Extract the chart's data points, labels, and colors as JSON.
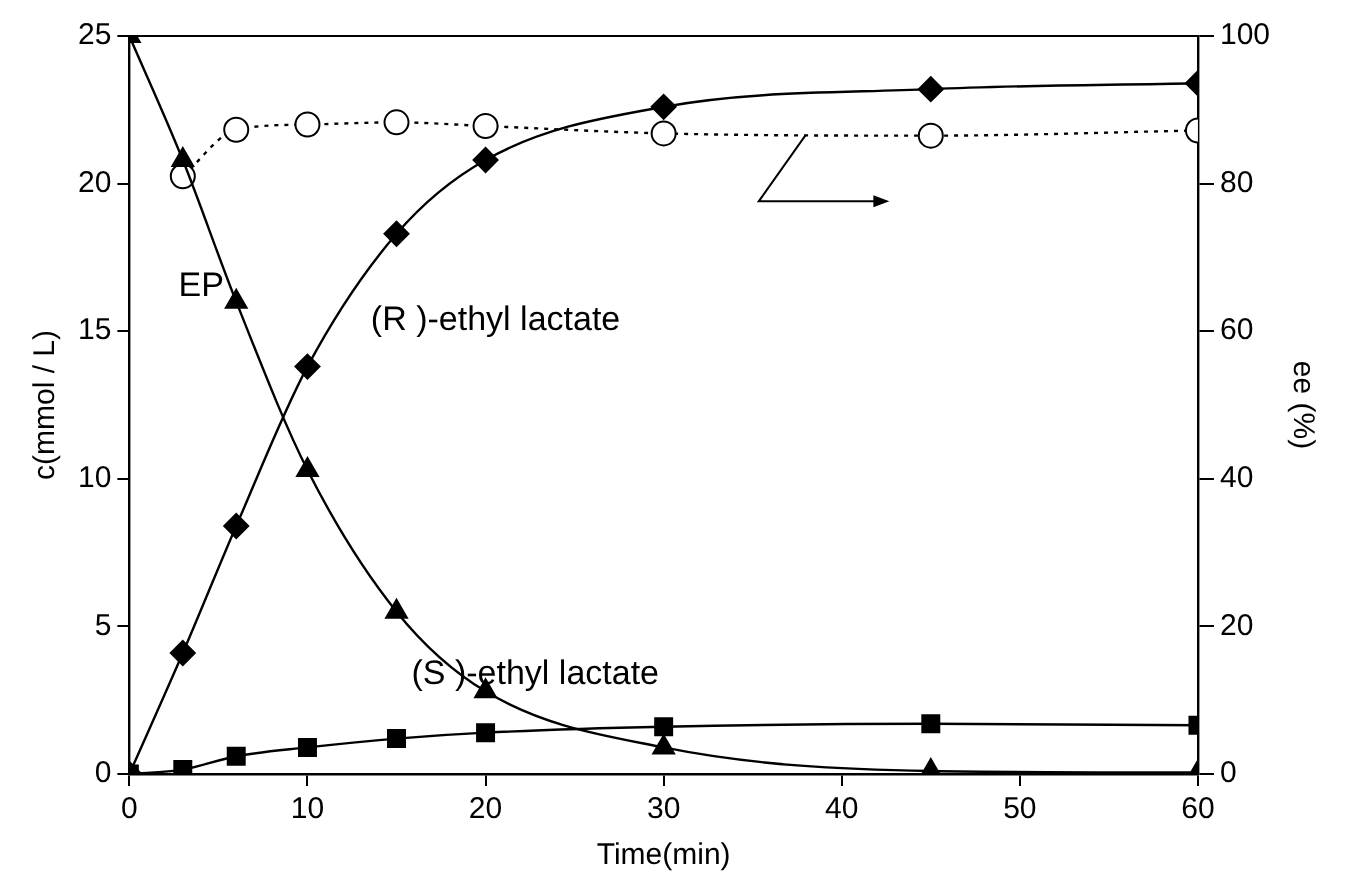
{
  "chart_data": {
    "type": "line",
    "xlabel": "Time(min)",
    "ylabel": "c(mmol / L)",
    "y2label": "ee (%)",
    "x": [
      0,
      3,
      6,
      10,
      15,
      20,
      30,
      45,
      60
    ],
    "xlim": [
      0,
      60
    ],
    "xticks": [
      0,
      10,
      20,
      30,
      40,
      50,
      60
    ],
    "ylim": [
      0,
      25
    ],
    "yticks": [
      0,
      5,
      10,
      15,
      20,
      25
    ],
    "y2lim": [
      0,
      100
    ],
    "y2ticks": [
      0,
      20,
      40,
      60,
      80,
      100
    ],
    "grid": false,
    "legend": false,
    "series": [
      {
        "color": "#000000",
        "marker": "triangle",
        "line_style": "solid",
        "values": [
          25,
          20.8,
          16,
          10.3,
          5.5,
          2.8,
          0.9,
          0.1,
          0.05
        ]
      },
      {
        "color": "#000000",
        "marker": "diamond",
        "line_style": "solid",
        "values": [
          0,
          4.1,
          8.4,
          13.8,
          18.3,
          20.8,
          22.6,
          23.2,
          23.4
        ]
      },
      {
        "color": "#000000",
        "marker": "square",
        "line_style": "solid",
        "values": [
          0,
          0.15,
          0.6,
          0.9,
          1.2,
          1.4,
          1.6,
          1.7,
          1.65
        ]
      },
      {
        "color": "#000000",
        "marker": "circle",
        "line_style": "dotted",
        "axis": "y2",
        "x": [
          3,
          6,
          10,
          15,
          20,
          30,
          45,
          60
        ],
        "values": [
          81,
          87.3,
          88,
          88.3,
          87.8,
          86.8,
          86.5,
          87.2
        ]
      }
    ],
    "annotations": [
      "EP",
      "(R )-ethyl lactate",
      "(S )-ethyl lactate"
    ]
  }
}
